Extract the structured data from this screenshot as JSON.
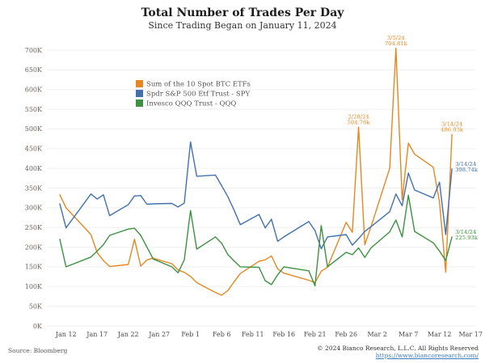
{
  "header": {
    "title": "Total Number of Trades Per Day",
    "subtitle": "Since Trading Began on January 11, 2024"
  },
  "footer": {
    "source": "Source: Bloomberg",
    "copyright": "© 2024 Bianco Research, L.L.C. All Rights Reserved",
    "link": "https://www.biancoresearch.com/"
  },
  "colors": {
    "btc": "#e58821",
    "spy": "#4371ac",
    "qqq": "#3d9142",
    "grid": "#f0efed",
    "axis_text": "#6b6258",
    "tick_text": "#4a4a4a",
    "legend_text": "#555555",
    "link": "#3c7dc4"
  },
  "chart_data": {
    "type": "line",
    "title": "Total Number of Trades Per Day",
    "subtitle": "Since Trading Began on January 11, 2024",
    "y_unit": "K",
    "ylim": [
      0,
      700
    ],
    "y_tick_step": 50,
    "grid": "horizontal-only",
    "legend_position": "inside-upper-left",
    "x_dates": [
      "1/11",
      "1/12",
      "1/16",
      "1/17",
      "1/18",
      "1/19",
      "1/22",
      "1/23",
      "1/24",
      "1/25",
      "1/26",
      "1/29",
      "1/30",
      "1/31",
      "2/1",
      "2/2",
      "2/5",
      "2/6",
      "2/7",
      "2/8",
      "2/9",
      "2/12",
      "2/13",
      "2/14",
      "2/15",
      "2/16",
      "2/20",
      "2/21",
      "2/22",
      "2/23",
      "2/26",
      "2/27",
      "2/28",
      "2/29",
      "3/1",
      "3/4",
      "3/5",
      "3/6",
      "3/7",
      "3/8",
      "3/11",
      "3/12",
      "3/13",
      "3/14"
    ],
    "x_tick_labels": [
      "Jan 12",
      "Jan 17",
      "Jan 22",
      "Jan 27",
      "Feb 1",
      "Feb 6",
      "Feb 11",
      "Feb 16",
      "Feb 21",
      "Feb 26",
      "Mar 2",
      "Mar 7",
      "Mar 12",
      "Mar 17"
    ],
    "x_tick_dates": [
      "1/12",
      "1/17",
      "1/22",
      "1/27",
      "2/1",
      "2/6",
      "2/11",
      "2/16",
      "2/21",
      "2/26",
      "3/2",
      "3/7",
      "3/12",
      "3/17"
    ],
    "series": [
      {
        "id": "btc",
        "name": "Sum of the 10 Spot BTC ETFs",
        "color": "#e58821",
        "values": [
          333,
          300,
          232,
          186,
          166,
          151,
          156,
          220,
          152,
          168,
          172,
          158,
          142,
          136,
          126,
          110,
          85,
          78,
          90,
          112,
          133,
          164,
          168,
          178,
          145,
          134,
          116,
          110,
          139,
          149,
          263,
          238,
          504.76,
          206,
          252,
          400,
          704.81,
          320,
          464,
          436,
          403,
          315,
          136,
          486.03
        ]
      },
      {
        "id": "spy",
        "name": "Spdr S&P 500 Etf Trust - SPY",
        "color": "#4371ac",
        "values": [
          310,
          249,
          335,
          322,
          333,
          280,
          308,
          330,
          331,
          309,
          310,
          311,
          302,
          312,
          467,
          380,
          383,
          356,
          328,
          294,
          257,
          283,
          249,
          271,
          215,
          226,
          265,
          242,
          196,
          226,
          232,
          205,
          222,
          240,
          252,
          290,
          335,
          305,
          388,
          345,
          325,
          365,
          232,
          398.74
        ]
      },
      {
        "id": "qqq",
        "name": "Invesco QQQ Trust - QQQ",
        "color": "#3d9142",
        "values": [
          220,
          150,
          175,
          190,
          206,
          230,
          246,
          248,
          230,
          200,
          170,
          150,
          135,
          168,
          293,
          195,
          226,
          210,
          181,
          165,
          150,
          149,
          115,
          105,
          130,
          150,
          140,
          102,
          255,
          150,
          187,
          181,
          198,
          174,
          198,
          239,
          269,
          226,
          332,
          240,
          211,
          190,
          166,
          225.93
        ]
      }
    ],
    "annotations": [
      {
        "series": "btc",
        "date": "2/28",
        "lines": [
          "2/28/24",
          "504.76k"
        ],
        "anchor": "above"
      },
      {
        "series": "btc",
        "date": "3/5",
        "lines": [
          "3/5/24",
          "704.81k"
        ],
        "anchor": "above"
      },
      {
        "series": "btc",
        "date": "3/14",
        "lines": [
          "3/14/24",
          "486.03k"
        ],
        "anchor": "above"
      },
      {
        "series": "spy",
        "date": "3/14",
        "lines": [
          "3/14/24",
          "398.74k"
        ],
        "anchor": "right"
      },
      {
        "series": "qqq",
        "date": "3/14",
        "lines": [
          "3/14/24",
          "225.93k"
        ],
        "anchor": "right"
      }
    ]
  }
}
